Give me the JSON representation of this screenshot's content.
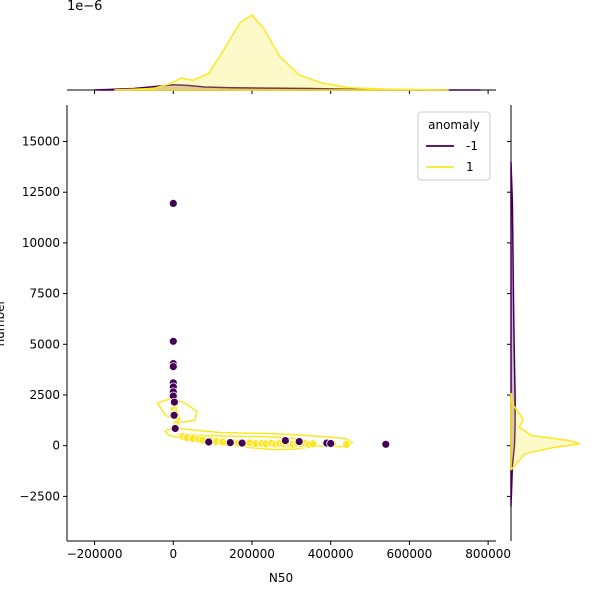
{
  "chart_data": {
    "type": "scatter",
    "subtype": "jointplot",
    "title": "",
    "xlabel": "N50",
    "ylabel": "number",
    "xlim": [
      -270000,
      820000
    ],
    "ylim": [
      -4700,
      16800
    ],
    "xticks": [
      -200000,
      0,
      200000,
      400000,
      600000,
      800000
    ],
    "xtick_labels": [
      "−200000",
      "0",
      "200000",
      "400000",
      "600000",
      "800000"
    ],
    "yticks": [
      -2500,
      0,
      2500,
      5000,
      7500,
      10000,
      12500,
      15000
    ],
    "ytick_labels": [
      "−2500",
      "0",
      "2500",
      "5000",
      "7500",
      "10000",
      "12500",
      "15000"
    ],
    "top_marginal_offset_label": "1e−6",
    "legend": {
      "title": "anomaly",
      "location": "upper right",
      "entries": [
        {
          "label": "-1",
          "color": "#440154"
        },
        {
          "label": "1",
          "color": "#fde725"
        }
      ]
    },
    "series": [
      {
        "name": "-1",
        "color": "#440154",
        "points": [
          [
            0,
            11950
          ],
          [
            0,
            5150
          ],
          [
            0,
            4050
          ],
          [
            0,
            3900
          ],
          [
            0,
            3100
          ],
          [
            0,
            2900
          ],
          [
            0,
            2650
          ],
          [
            0,
            2450
          ],
          [
            3000,
            2150
          ],
          [
            2000,
            1500
          ],
          [
            5000,
            850
          ],
          [
            90000,
            180
          ],
          [
            145000,
            150
          ],
          [
            175000,
            130
          ],
          [
            285000,
            250
          ],
          [
            320000,
            200
          ],
          [
            390000,
            130
          ],
          [
            400000,
            110
          ],
          [
            540000,
            70
          ]
        ]
      },
      {
        "name": "1",
        "color": "#fde725",
        "points": [
          [
            0,
            2450
          ],
          [
            2000,
            2200
          ],
          [
            3000,
            1950
          ],
          [
            2000,
            1750
          ],
          [
            5000,
            1600
          ],
          [
            8000,
            1400
          ],
          [
            10000,
            1250
          ],
          [
            8000,
            1050
          ],
          [
            6000,
            900
          ],
          [
            25000,
            450
          ],
          [
            35000,
            400
          ],
          [
            50000,
            350
          ],
          [
            65000,
            320
          ],
          [
            75000,
            280
          ],
          [
            95000,
            250
          ],
          [
            110000,
            200
          ],
          [
            125000,
            180
          ],
          [
            150000,
            150
          ],
          [
            165000,
            130
          ],
          [
            180000,
            120
          ],
          [
            195000,
            140
          ],
          [
            210000,
            100
          ],
          [
            225000,
            110
          ],
          [
            235000,
            90
          ],
          [
            250000,
            120
          ],
          [
            260000,
            80
          ],
          [
            270000,
            110
          ],
          [
            280000,
            100
          ],
          [
            295000,
            90
          ],
          [
            305000,
            70
          ],
          [
            315000,
            100
          ],
          [
            325000,
            80
          ],
          [
            335000,
            120
          ],
          [
            345000,
            60
          ],
          [
            355000,
            90
          ],
          [
            405000,
            80
          ],
          [
            440000,
            60
          ]
        ]
      }
    ],
    "kde_contours": [
      {
        "series": "1",
        "color": "#fde725",
        "paths": [
          [
            [
              -30000,
              1800
            ],
            [
              -40000,
              2100
            ],
            [
              -10000,
              2300
            ],
            [
              25000,
              2150
            ],
            [
              60000,
              1700
            ],
            [
              55000,
              1250
            ],
            [
              20000,
              1150
            ],
            [
              5000,
              1300
            ],
            [
              -20000,
              1500
            ],
            [
              -30000,
              1800
            ]
          ],
          [
            [
              -20000,
              700
            ],
            [
              -10000,
              500
            ],
            [
              40000,
              300
            ],
            [
              120000,
              50
            ],
            [
              200000,
              -100
            ],
            [
              260000,
              -200
            ],
            [
              320000,
              -150
            ],
            [
              360000,
              0
            ],
            [
              440000,
              -50
            ],
            [
              455000,
              150
            ],
            [
              440000,
              350
            ],
            [
              380000,
              450
            ],
            [
              300000,
              550
            ],
            [
              240000,
              600
            ],
            [
              180000,
              620
            ],
            [
              120000,
              650
            ],
            [
              60000,
              750
            ],
            [
              20000,
              850
            ],
            [
              -15000,
              800
            ],
            [
              -20000,
              700
            ]
          ],
          [
            [
              10000,
              550
            ],
            [
              60000,
              380
            ],
            [
              140000,
              200
            ],
            [
              220000,
              80
            ],
            [
              290000,
              0
            ],
            [
              340000,
              60
            ],
            [
              350000,
              220
            ],
            [
              300000,
              380
            ],
            [
              230000,
              450
            ],
            [
              150000,
              470
            ],
            [
              80000,
              500
            ],
            [
              30000,
              560
            ],
            [
              10000,
              550
            ]
          ]
        ]
      }
    ],
    "top_marginal": {
      "series": [
        {
          "name": "-1",
          "color": "#440154",
          "x": [
            -200000,
            -100000,
            -40000,
            0,
            40000,
            80000,
            150000,
            250000,
            350000,
            450000,
            550000,
            650000,
            780000
          ],
          "density": [
            0.0,
            0.02,
            0.05,
            0.07,
            0.06,
            0.04,
            0.03,
            0.025,
            0.02,
            0.01,
            0.005,
            0.0,
            0.0
          ]
        },
        {
          "name": "1",
          "color": "#fde725",
          "x": [
            -150000,
            -50000,
            -10000,
            20000,
            50000,
            90000,
            130000,
            170000,
            200000,
            230000,
            270000,
            320000,
            380000,
            450000,
            550000,
            700000
          ],
          "density": [
            0.0,
            0.02,
            0.08,
            0.16,
            0.13,
            0.22,
            0.55,
            0.9,
            1.0,
            0.82,
            0.45,
            0.2,
            0.09,
            0.03,
            0.01,
            0.0
          ]
        }
      ]
    },
    "right_marginal": {
      "series": [
        {
          "name": "-1",
          "color": "#440154",
          "y": [
            -3000,
            -1000,
            0,
            1000,
            2500,
            4000,
            6000,
            9000,
            12000,
            14000
          ],
          "density": [
            0.0,
            0.02,
            0.05,
            0.06,
            0.06,
            0.05,
            0.04,
            0.03,
            0.02,
            0.0
          ]
        },
        {
          "name": "1",
          "color": "#fde725",
          "y": [
            -1200,
            -400,
            -100,
            100,
            250,
            500,
            900,
            1300,
            1600,
            2000,
            2600
          ],
          "density": [
            0.0,
            0.2,
            0.6,
            1.0,
            0.85,
            0.3,
            0.12,
            0.18,
            0.12,
            0.03,
            0.0
          ]
        }
      ]
    }
  }
}
